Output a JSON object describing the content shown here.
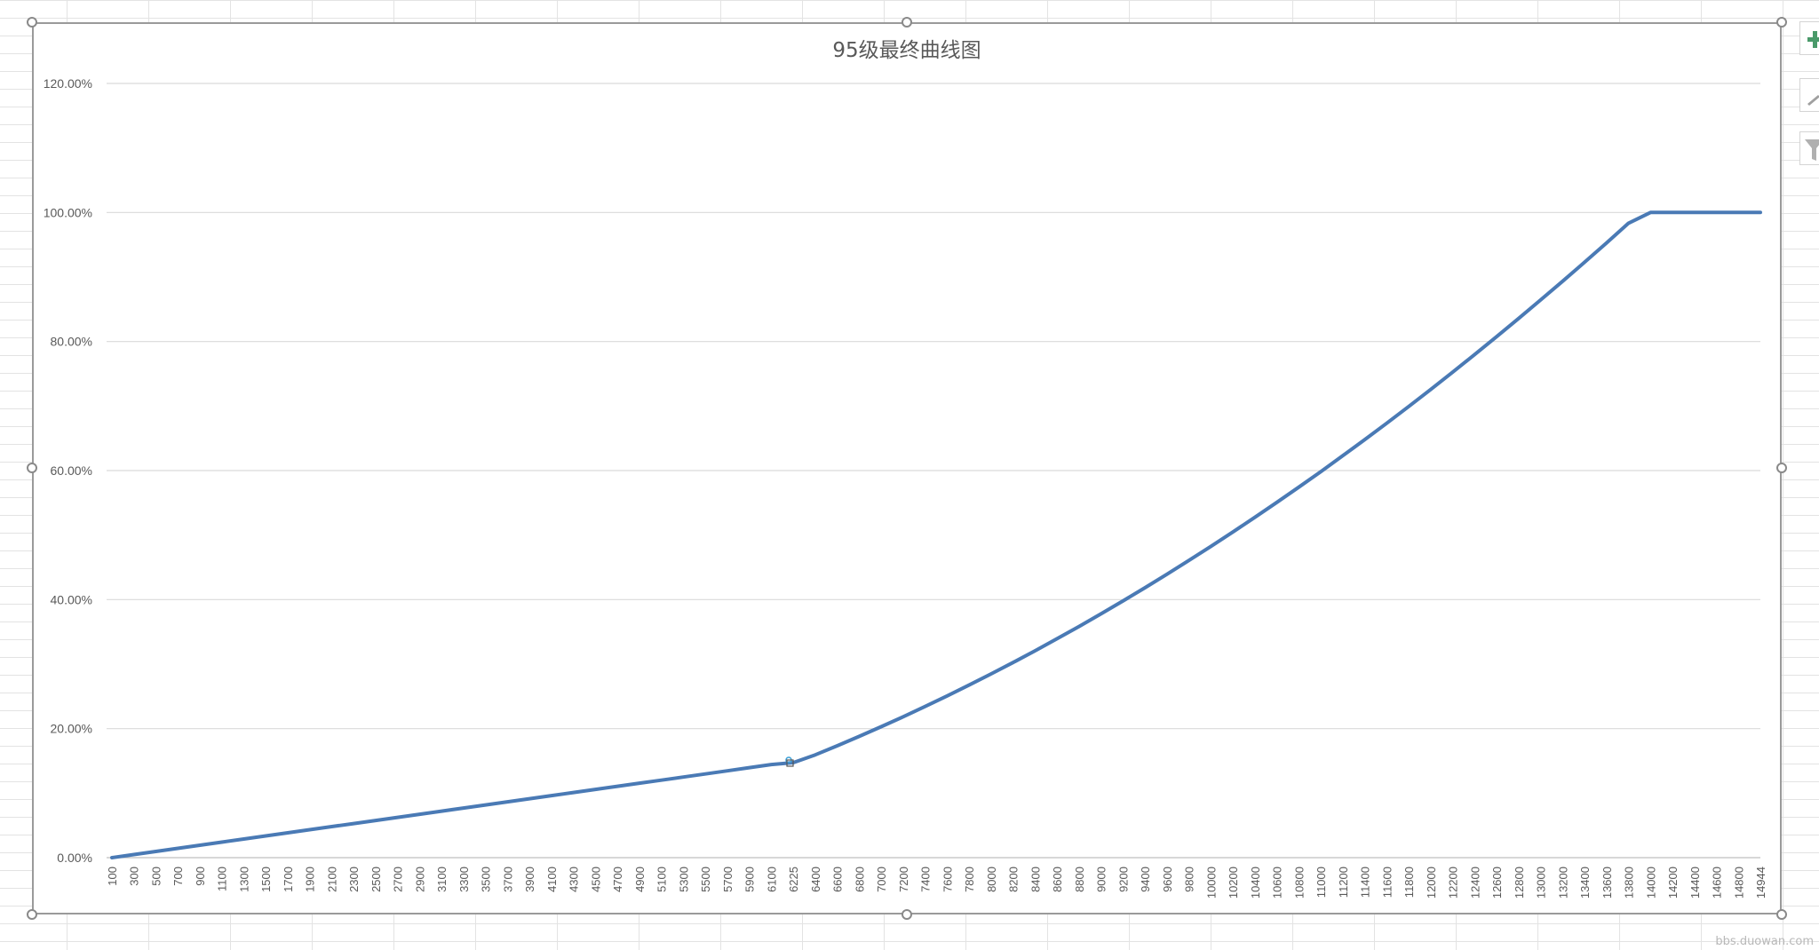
{
  "chart_data": {
    "type": "line",
    "title": "95级最终曲线图",
    "xlabel": "",
    "ylabel": "",
    "ylim": [
      0,
      1.2
    ],
    "y_ticks": [
      "0.00%",
      "20.00%",
      "40.00%",
      "60.00%",
      "80.00%",
      "100.00%",
      "120.00%"
    ],
    "categories": [
      "100",
      "300",
      "500",
      "700",
      "900",
      "1100",
      "1300",
      "1500",
      "1700",
      "1900",
      "2100",
      "2300",
      "2500",
      "2700",
      "2900",
      "3100",
      "3300",
      "3500",
      "3700",
      "3900",
      "4100",
      "4300",
      "4500",
      "4700",
      "4900",
      "5100",
      "5300",
      "5500",
      "5700",
      "5900",
      "6100",
      "6225",
      "6400",
      "6600",
      "6800",
      "7000",
      "7200",
      "7400",
      "7600",
      "7800",
      "8000",
      "8200",
      "8400",
      "8600",
      "8800",
      "9000",
      "9200",
      "9400",
      "9600",
      "9800",
      "10000",
      "10200",
      "10400",
      "10600",
      "10800",
      "11000",
      "11200",
      "11400",
      "11600",
      "11800",
      "12000",
      "12200",
      "12400",
      "12600",
      "12800",
      "13000",
      "13200",
      "13400",
      "13600",
      "13800",
      "14000",
      "14200",
      "14400",
      "14600",
      "14800",
      "14944"
    ],
    "series": [
      {
        "name": "",
        "color": "#4a7ab5",
        "values": [
          0.0,
          0.0048,
          0.0096,
          0.0144,
          0.0192,
          0.0241,
          0.0289,
          0.0337,
          0.0385,
          0.0433,
          0.0481,
          0.0529,
          0.0577,
          0.0625,
          0.0673,
          0.0721,
          0.0769,
          0.0818,
          0.0866,
          0.0914,
          0.0962,
          0.101,
          0.1058,
          0.1106,
          0.1154,
          0.1202,
          0.125,
          0.1298,
          0.1346,
          0.1395,
          0.1443,
          0.1473,
          0.1593,
          0.1734,
          0.188,
          0.203,
          0.2184,
          0.2343,
          0.2507,
          0.2675,
          0.2848,
          0.3025,
          0.3207,
          0.3393,
          0.3584,
          0.3779,
          0.3979,
          0.4184,
          0.4393,
          0.4607,
          0.4825,
          0.5048,
          0.5275,
          0.5507,
          0.5743,
          0.5984,
          0.623,
          0.648,
          0.6734,
          0.6993,
          0.7257,
          0.7525,
          0.7798,
          0.8075,
          0.8357,
          0.8643,
          0.8934,
          0.9229,
          0.9529,
          0.9834,
          1.0,
          1.0,
          1.0,
          1.0,
          1.0,
          1.0
        ]
      }
    ],
    "grid": true,
    "legend": "none"
  },
  "watermark": "bbs.duowan.com"
}
